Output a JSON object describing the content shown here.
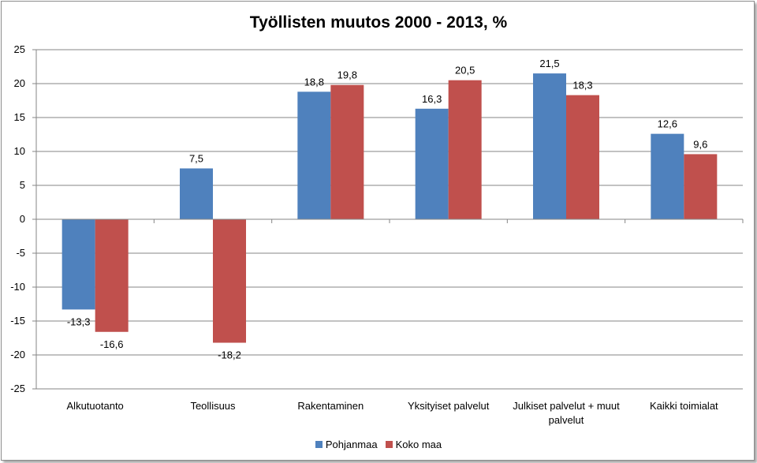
{
  "chart_data": {
    "type": "bar",
    "title": "Työllisten muutos 2000 - 2013, %",
    "categories": [
      "Alkutuotanto",
      "Teollisuus",
      "Rakentaminen",
      "Yksityiset palvelut",
      "Julkiset palvelut + muut palvelut",
      "Kaikki toimialat"
    ],
    "category_lines": [
      [
        "Alkutuotanto"
      ],
      [
        "Teollisuus"
      ],
      [
        "Rakentaminen"
      ],
      [
        "Yksityiset palvelut"
      ],
      [
        "Julkiset palvelut + muut",
        "palvelut"
      ],
      [
        "Kaikki toimialat"
      ]
    ],
    "series": [
      {
        "name": "Pohjanmaa",
        "color": "#4f81bd",
        "values": [
          -13.3,
          7.5,
          18.8,
          16.3,
          21.5,
          12.6
        ],
        "labels": [
          "-13,3",
          "7,5",
          "18,8",
          "16,3",
          "21,5",
          "12,6"
        ]
      },
      {
        "name": "Koko maa",
        "color": "#c0504d",
        "values": [
          -16.6,
          -18.2,
          19.8,
          20.5,
          18.3,
          9.6
        ],
        "labels": [
          "-16,6",
          "-18,2",
          "19,8",
          "20,5",
          "18,3",
          "9,6"
        ]
      }
    ],
    "ylim": [
      -25,
      25
    ],
    "yticks": [
      25,
      20,
      15,
      10,
      5,
      0,
      -5,
      -10,
      -15,
      -20,
      -25
    ],
    "ytick_labels": [
      "25",
      "20",
      "15",
      "10",
      "5",
      "0",
      "-5",
      "-10",
      "-15",
      "-20",
      "-25"
    ],
    "grid": true,
    "legend_position": "bottom"
  }
}
